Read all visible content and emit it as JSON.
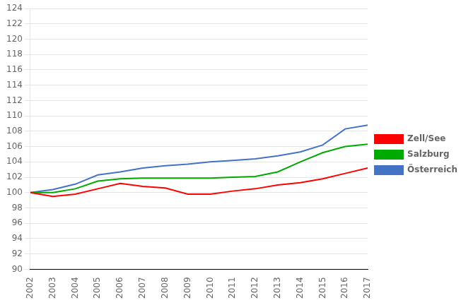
{
  "chart_data": {
    "type": "line",
    "x": [
      2002,
      2003,
      2004,
      2005,
      2006,
      2007,
      2008,
      2009,
      2010,
      2011,
      2012,
      2013,
      2014,
      2015,
      2016,
      2017
    ],
    "series": [
      {
        "name": "Zell/See",
        "color": "#ff0000",
        "values": [
          100.0,
          99.5,
          99.8,
          100.5,
          101.2,
          100.8,
          100.6,
          99.8,
          99.8,
          100.2,
          100.5,
          101.0,
          101.3,
          101.8,
          102.5,
          103.2
        ]
      },
      {
        "name": "Salzburg",
        "color": "#00aa00",
        "values": [
          100.0,
          100.0,
          100.5,
          101.5,
          101.8,
          101.9,
          101.9,
          101.9,
          101.9,
          102.0,
          102.1,
          102.7,
          104.0,
          105.2,
          106.0,
          106.3
        ]
      },
      {
        "name": "Österreich",
        "color": "#4472c4",
        "values": [
          100.0,
          100.4,
          101.1,
          102.3,
          102.7,
          103.2,
          103.5,
          103.7,
          104.0,
          104.2,
          104.4,
          104.8,
          105.3,
          106.2,
          108.3,
          108.8
        ]
      }
    ],
    "xlim": [
      2002,
      2017
    ],
    "xticks": [
      2002,
      2003,
      2004,
      2005,
      2006,
      2007,
      2008,
      2009,
      2010,
      2011,
      2012,
      2013,
      2014,
      2015,
      2016,
      2017
    ],
    "ylim": [
      90,
      124
    ],
    "yticks": [
      90,
      92,
      94,
      96,
      98,
      100,
      102,
      104,
      106,
      108,
      110,
      112,
      114,
      116,
      118,
      120,
      122,
      124
    ],
    "grid": "y",
    "legend": "right"
  }
}
